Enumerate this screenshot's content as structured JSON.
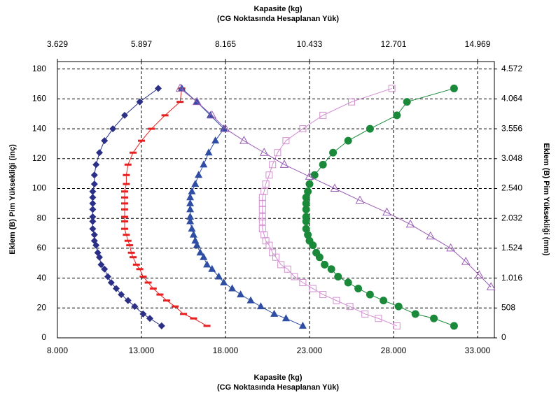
{
  "chart_data": {
    "type": "line",
    "x_label": "Kapasite (kg)",
    "x_sublabel": "(CG Noktasında Hesaplanan Yük)",
    "x2_label": "Kapasite (kg)",
    "x2_sublabel": "(CG Noktasında Hesaplanan Yük)",
    "y_label": "Eklem (B) Pim Yüksekliği (inç)",
    "y2_label": "Eklem (B) Pim Yüksekliği (mm)",
    "xlim": [
      8,
      34
    ],
    "xticks": [
      {
        "value": 8,
        "label": "8.000"
      },
      {
        "value": 13,
        "label": "13.000"
      },
      {
        "value": 18,
        "label": "18.000"
      },
      {
        "value": 23,
        "label": "23.000"
      },
      {
        "value": 28,
        "label": "28.000"
      },
      {
        "value": 33,
        "label": "33.000"
      }
    ],
    "x2lim": [
      3.629,
      15.422
    ],
    "x2ticks": [
      3.629,
      5.897,
      8.165,
      10.433,
      12.701,
      14.969
    ],
    "ylim": [
      0,
      185
    ],
    "yticks": [
      0,
      20,
      40,
      60,
      80,
      100,
      120,
      140,
      160,
      180
    ],
    "y2lim": [
      0,
      4699
    ],
    "y2ticks": [
      0,
      508,
      {
        "value": 1016,
        "label": "1.016"
      },
      {
        "value": 1524,
        "label": "1.524"
      },
      {
        "value": 2032,
        "label": "2.032"
      },
      {
        "value": 2540,
        "label": "2.540"
      },
      {
        "value": 3048,
        "label": "3.048"
      },
      {
        "value": 3556,
        "label": "3.556"
      },
      {
        "value": 4064,
        "label": "4.064"
      },
      {
        "value": 4572,
        "label": "4.572"
      }
    ],
    "grid": true,
    "series": [
      {
        "color": "#2b2f86",
        "marker": "diamond",
        "x": [
          14.2,
          13.5,
          13.1,
          12.6,
          12.2,
          11.8,
          11.5,
          11.2,
          11.0,
          10.8,
          10.6,
          10.5,
          10.4,
          10.3,
          10.2,
          10.2,
          10.1,
          10.1,
          10.1,
          10.1,
          10.1,
          10.1,
          10.1,
          10.2,
          10.2,
          10.3,
          10.5,
          10.8,
          11.3,
          12.0,
          12.9,
          14.0
        ],
        "values": [
          8,
          13,
          16,
          21,
          25,
          29,
          33,
          37,
          41,
          46,
          49,
          54,
          57,
          62,
          65,
          69,
          73,
          78,
          81,
          86,
          90,
          94,
          98,
          103,
          109,
          116,
          124,
          132,
          140,
          149,
          158,
          167
        ]
      },
      {
        "color": "#e8201f",
        "marker": "dash",
        "x": [
          16.9,
          16.1,
          15.5,
          15.0,
          14.5,
          14.1,
          13.7,
          13.4,
          13.1,
          12.9,
          12.7,
          12.5,
          12.4,
          12.3,
          12.2,
          12.1,
          12.0,
          12.0,
          12.0,
          12.0,
          12.0,
          12.0,
          12.0,
          12.1,
          12.1,
          12.2,
          12.5,
          13.0,
          13.6,
          14.4,
          15.3,
          15.4
        ],
        "values": [
          8,
          13,
          16,
          21,
          25,
          29,
          33,
          37,
          41,
          46,
          49,
          54,
          57,
          62,
          65,
          69,
          73,
          78,
          81,
          86,
          90,
          94,
          98,
          103,
          109,
          116,
          124,
          132,
          140,
          149,
          158,
          167
        ]
      },
      {
        "color": "#2f4ea3",
        "marker": "triangle",
        "x": [
          22.6,
          21.6,
          20.9,
          20.1,
          19.5,
          18.9,
          18.4,
          17.9,
          17.6,
          17.2,
          16.9,
          16.7,
          16.5,
          16.3,
          16.2,
          16.1,
          16.0,
          15.9,
          15.9,
          15.9,
          15.9,
          15.9,
          16.0,
          16.2,
          16.4,
          16.7,
          17.0,
          17.4,
          17.9,
          17.1,
          16.3,
          15.4
        ],
        "values": [
          8,
          13,
          16,
          21,
          25,
          29,
          33,
          37,
          41,
          46,
          49,
          54,
          57,
          62,
          65,
          69,
          73,
          78,
          81,
          86,
          90,
          94,
          98,
          103,
          109,
          116,
          124,
          132,
          140,
          149,
          158,
          167
        ]
      },
      {
        "color": "#d38fd0",
        "marker": "square",
        "x": [
          28.2,
          27.1,
          26.3,
          25.4,
          24.6,
          23.8,
          23.2,
          22.6,
          22.1,
          21.7,
          21.3,
          21.0,
          20.8,
          20.6,
          20.4,
          20.3,
          20.2,
          20.2,
          20.2,
          20.2,
          20.2,
          20.2,
          20.3,
          20.4,
          20.6,
          20.8,
          21.1,
          21.6,
          22.6,
          23.8,
          25.5,
          27.9
        ],
        "values": [
          8,
          13,
          16,
          21,
          25,
          29,
          33,
          37,
          41,
          46,
          49,
          54,
          57,
          62,
          65,
          69,
          73,
          78,
          81,
          86,
          90,
          94,
          98,
          103,
          109,
          116,
          124,
          132,
          140,
          149,
          158,
          167
        ]
      },
      {
        "color": "#1a8a3a",
        "marker": "circle",
        "x": [
          31.6,
          30.4,
          29.3,
          28.3,
          27.4,
          26.6,
          25.9,
          25.3,
          24.7,
          24.3,
          23.9,
          23.6,
          23.4,
          23.2,
          23.0,
          22.9,
          22.8,
          22.8,
          22.8,
          22.8,
          22.8,
          22.8,
          22.9,
          23.0,
          23.3,
          23.8,
          24.4,
          25.3,
          26.6,
          28.2,
          28.8,
          31.6
        ],
        "values": [
          8,
          13,
          16,
          21,
          25,
          29,
          33,
          37,
          41,
          46,
          49,
          54,
          57,
          62,
          65,
          69,
          73,
          78,
          81,
          86,
          90,
          94,
          98,
          103,
          109,
          116,
          124,
          132,
          140,
          149,
          158,
          167
        ]
      },
      {
        "color": "#9a5cb4",
        "marker": "triangle-open",
        "x": [
          15.3,
          16.3,
          17.2,
          18.0,
          19.1,
          20.3,
          21.5,
          23.0,
          24.5,
          26.0,
          27.6,
          29.0,
          30.2,
          31.4,
          32.3,
          33.1,
          33.8
        ],
        "values": [
          167,
          158,
          149,
          140,
          132,
          124,
          116,
          108,
          100,
          92,
          84,
          76,
          68,
          60,
          51,
          42,
          34
        ]
      }
    ]
  }
}
